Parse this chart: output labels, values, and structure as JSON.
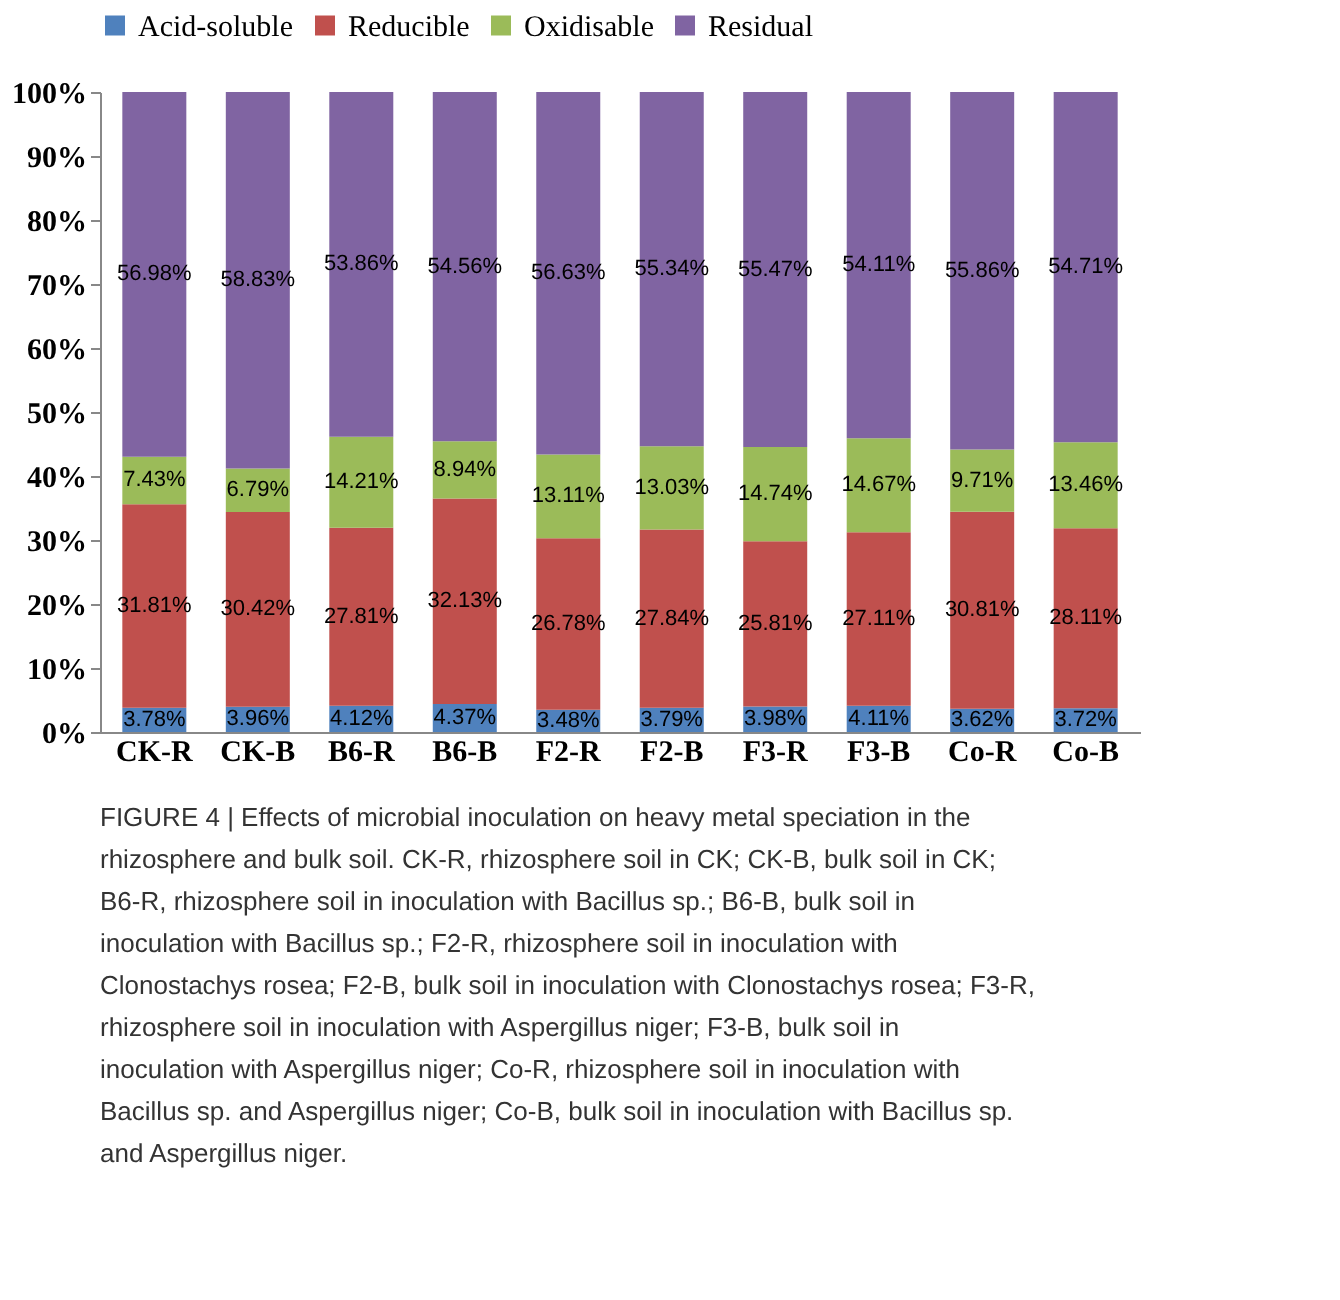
{
  "chart_data": {
    "type": "bar",
    "stacked": true,
    "categories": [
      "CK-R",
      "CK-B",
      "B6-R",
      "B6-B",
      "F2-R",
      "F2-B",
      "F3-R",
      "F3-B",
      "Co-R",
      "Co-B"
    ],
    "series": [
      {
        "name": "Acid-soluble",
        "color": "#4f81bd",
        "values": [
          3.78,
          3.96,
          4.12,
          4.37,
          3.48,
          3.79,
          3.98,
          4.11,
          3.62,
          3.72
        ],
        "value_labels": [
          "3.78%",
          "3.96%",
          "4.12%",
          "4.37%",
          "3.48%",
          "3.79%",
          "3.98%",
          "4.11%",
          "3.62%",
          "3.72%"
        ]
      },
      {
        "name": "Reducible",
        "color": "#c0504d",
        "values": [
          31.81,
          30.42,
          27.81,
          32.13,
          26.78,
          27.84,
          25.81,
          27.11,
          30.81,
          28.11
        ],
        "value_labels": [
          "31.81%",
          "30.42%",
          "27.81%",
          "32.13%",
          "26.78%",
          "27.84%",
          "25.81%",
          "27.11%",
          "30.81%",
          "28.11%"
        ]
      },
      {
        "name": "Oxidisable",
        "color": "#9bbb59",
        "values": [
          7.43,
          6.79,
          14.21,
          8.94,
          13.11,
          13.03,
          14.74,
          14.67,
          9.71,
          13.46
        ],
        "value_labels": [
          "7.43%",
          "6.79%",
          "14.21%",
          "8.94%",
          "13.11%",
          "13.03%",
          "14.74%",
          "14.67%",
          "9.71%",
          "13.46%"
        ]
      },
      {
        "name": "Residual",
        "color": "#8064a2",
        "values": [
          56.98,
          58.83,
          53.86,
          54.56,
          56.63,
          55.34,
          55.47,
          54.11,
          55.86,
          54.71
        ],
        "value_labels": [
          "56.98%",
          "58.83%",
          "53.86%",
          "54.56%",
          "56.63%",
          "55.34%",
          "55.47%",
          "54.11%",
          "55.86%",
          "54.71%"
        ]
      }
    ],
    "ylim": [
      0,
      100
    ],
    "yticks": [
      {
        "value": 0,
        "label": "0%"
      },
      {
        "value": 10,
        "label": "10%"
      },
      {
        "value": 20,
        "label": "20%"
      },
      {
        "value": 30,
        "label": "30%"
      },
      {
        "value": 40,
        "label": "40%"
      },
      {
        "value": 50,
        "label": "50%"
      },
      {
        "value": 60,
        "label": "60%"
      },
      {
        "value": 70,
        "label": "70%"
      },
      {
        "value": 80,
        "label": "80%"
      },
      {
        "value": 90,
        "label": "90%"
      },
      {
        "value": 100,
        "label": "100%"
      }
    ],
    "grid": false,
    "legend": "top",
    "annotations": [
      "FIGURE 4 | Effects of microbial inoculation on heavy metal speciation in the rhizosphere and bulk soil. CK-R, rhizosphere soil in CK; CK-B, bulk soil in CK; B6-R, rhizosphere soil in inoculation with Bacillus sp.; B6-B, bulk soil in inoculation with Bacillus sp.; F2-R, rhizosphere soil in inoculation with Clonostachys rosea; F2-B, bulk soil in inoculation with Clonostachys rosea; F3-R, rhizosphere soil in inoculation with Aspergillus niger; F3-B, bulk soil in inoculation with Aspergillus niger; Co-R, rhizosphere soil in inoculation with Bacillus sp. and Aspergillus niger; Co-B, bulk soil in inoculation with Bacillus sp. and Aspergillus niger."
    ]
  }
}
